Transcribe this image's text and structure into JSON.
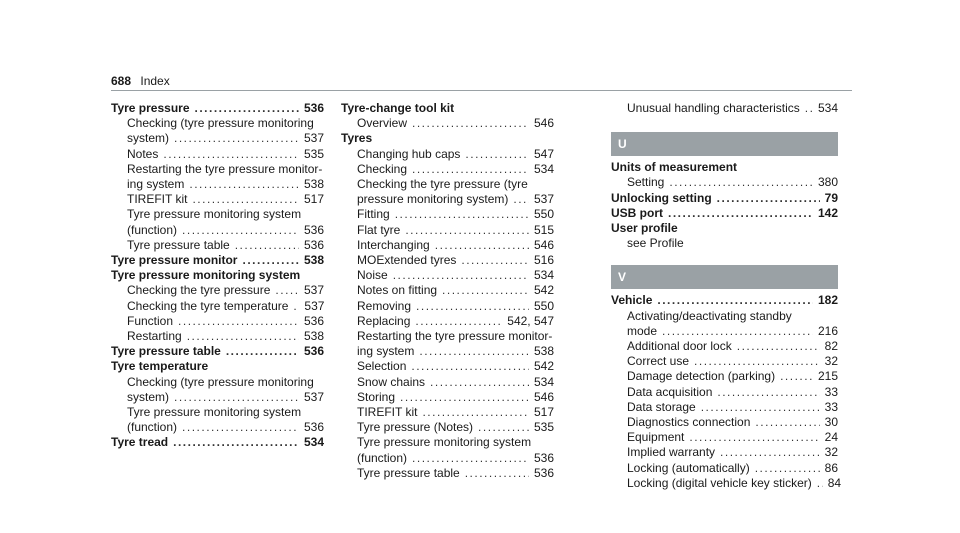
{
  "header": {
    "page_number": "688",
    "title": "Index"
  },
  "col1": [
    {
      "kind": "head",
      "text": "Tyre pressure",
      "page": "536"
    },
    {
      "kind": "wrap",
      "text": "Checking (tyre pressure monitoring"
    },
    {
      "kind": "sub",
      "text": "system)",
      "page": "537"
    },
    {
      "kind": "sub",
      "text": "Notes",
      "page": "535"
    },
    {
      "kind": "wrap",
      "text": "Restarting the tyre pressure monitor-"
    },
    {
      "kind": "sub",
      "text": "ing system",
      "page": "538"
    },
    {
      "kind": "sub",
      "text": "TIREFIT kit",
      "page": "517"
    },
    {
      "kind": "wrap",
      "text": "Tyre pressure monitoring system"
    },
    {
      "kind": "sub",
      "text": "(function)",
      "page": "536"
    },
    {
      "kind": "sub",
      "text": "Tyre pressure table",
      "page": "536"
    },
    {
      "kind": "head",
      "text": "Tyre pressure monitor",
      "page": "538"
    },
    {
      "kind": "headonly",
      "text": "Tyre pressure monitoring system"
    },
    {
      "kind": "sub",
      "text": "Checking the tyre pressure",
      "page": "537"
    },
    {
      "kind": "sub",
      "text": "Checking the tyre temperature",
      "page": "537"
    },
    {
      "kind": "sub",
      "text": "Function",
      "page": "536"
    },
    {
      "kind": "sub",
      "text": "Restarting",
      "page": "538"
    },
    {
      "kind": "head",
      "text": "Tyre pressure table",
      "page": "536"
    },
    {
      "kind": "headonly",
      "text": "Tyre temperature"
    },
    {
      "kind": "wrap",
      "text": "Checking (tyre pressure monitoring"
    },
    {
      "kind": "sub",
      "text": "system)",
      "page": "537"
    },
    {
      "kind": "wrap",
      "text": "Tyre pressure monitoring system"
    },
    {
      "kind": "sub",
      "text": "(function)",
      "page": "536"
    },
    {
      "kind": "head",
      "text": "Tyre tread",
      "page": "534"
    }
  ],
  "col2": [
    {
      "kind": "headonly",
      "text": "Tyre-change tool kit"
    },
    {
      "kind": "sub",
      "text": "Overview",
      "page": "546"
    },
    {
      "kind": "headonly",
      "text": "Tyres"
    },
    {
      "kind": "sub",
      "text": "Changing hub caps",
      "page": "547"
    },
    {
      "kind": "sub",
      "text": "Checking",
      "page": "534"
    },
    {
      "kind": "wrap",
      "text": "Checking the tyre pressure (tyre"
    },
    {
      "kind": "sub",
      "text": "pressure monitoring system)",
      "page": "537"
    },
    {
      "kind": "sub",
      "text": "Fitting",
      "page": "550"
    },
    {
      "kind": "sub",
      "text": "Flat tyre",
      "page": "515"
    },
    {
      "kind": "sub",
      "text": "Interchanging",
      "page": "546"
    },
    {
      "kind": "sub",
      "text": "MOExtended tyres",
      "page": "516"
    },
    {
      "kind": "sub",
      "text": "Noise",
      "page": "534"
    },
    {
      "kind": "sub",
      "text": "Notes on fitting",
      "page": "542"
    },
    {
      "kind": "sub",
      "text": "Removing",
      "page": "550"
    },
    {
      "kind": "sub",
      "text": "Replacing",
      "page": "542, 547"
    },
    {
      "kind": "wrap",
      "text": "Restarting the tyre pressure monitor-"
    },
    {
      "kind": "sub",
      "text": "ing system",
      "page": "538"
    },
    {
      "kind": "sub",
      "text": "Selection",
      "page": "542"
    },
    {
      "kind": "sub",
      "text": "Snow chains",
      "page": "534"
    },
    {
      "kind": "sub",
      "text": "Storing",
      "page": "546"
    },
    {
      "kind": "sub",
      "text": "TIREFIT kit",
      "page": "517"
    },
    {
      "kind": "sub",
      "text": "Tyre pressure (Notes)",
      "page": "535"
    },
    {
      "kind": "wrap",
      "text": "Tyre pressure monitoring system"
    },
    {
      "kind": "sub",
      "text": "(function)",
      "page": "536"
    },
    {
      "kind": "sub",
      "text": "Tyre pressure table",
      "page": "536"
    }
  ],
  "col3_top": {
    "text": "Unusual handling characteristics",
    "page": "534"
  },
  "section_u": "U",
  "col3_u": [
    {
      "kind": "headonly",
      "text": "Units of measurement"
    },
    {
      "kind": "sub",
      "text": "Setting",
      "page": "380"
    },
    {
      "kind": "head",
      "text": "Unlocking setting",
      "page": "79"
    },
    {
      "kind": "head",
      "text": "USB port",
      "page": "142"
    },
    {
      "kind": "headonly",
      "text": "User profile"
    },
    {
      "kind": "wrap",
      "text": "see Profile"
    }
  ],
  "section_v": "V",
  "col3_v": [
    {
      "kind": "head",
      "text": "Vehicle",
      "page": "182"
    },
    {
      "kind": "wrap",
      "text": "Activating/deactivating standby"
    },
    {
      "kind": "sub",
      "text": "mode",
      "page": "216"
    },
    {
      "kind": "sub",
      "text": "Additional door lock",
      "page": "82"
    },
    {
      "kind": "sub",
      "text": "Correct use",
      "page": "32"
    },
    {
      "kind": "sub",
      "text": "Damage detection (parking)",
      "page": "215"
    },
    {
      "kind": "sub",
      "text": "Data acquisition",
      "page": "33"
    },
    {
      "kind": "sub",
      "text": "Data storage",
      "page": "33"
    },
    {
      "kind": "sub",
      "text": "Diagnostics connection",
      "page": "30"
    },
    {
      "kind": "sub",
      "text": "Equipment",
      "page": "24"
    },
    {
      "kind": "sub",
      "text": "Implied warranty",
      "page": "32"
    },
    {
      "kind": "sub",
      "text": "Locking (automatically)",
      "page": "86"
    },
    {
      "kind": "sub",
      "text": "Locking (digital vehicle key sticker)",
      "page": "84"
    }
  ]
}
